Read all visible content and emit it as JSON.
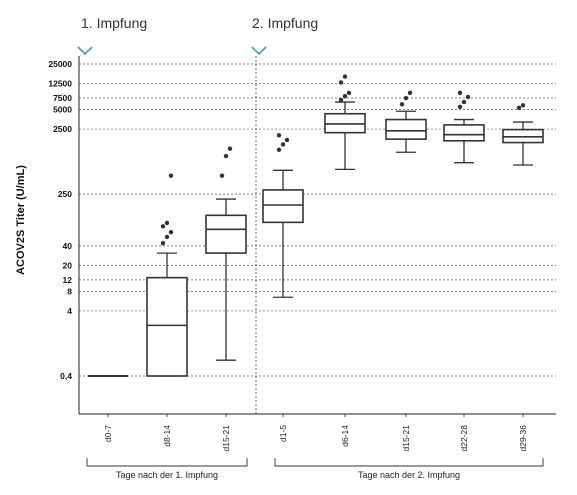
{
  "chart_data": {
    "type": "box",
    "section_labels": [
      "1. Impfung",
      "2. Impfung"
    ],
    "ylabel": "ACOV2S Titer (U/mL)",
    "y_scale": "log",
    "y_ticks": [
      "25000",
      "12500",
      "7500",
      "5000",
      "2500",
      "250",
      "40",
      "20",
      "12",
      "8",
      "4",
      "0,4"
    ],
    "y_tick_values": [
      25000,
      12500,
      7500,
      5000,
      2500,
      250,
      40,
      20,
      12,
      8,
      4,
      0.4
    ],
    "grid": "horizontal dashed",
    "groups": [
      {
        "label": "Tage nach der 1. Impfung",
        "categories": [
          "d0-7",
          "d8-14",
          "d15-21"
        ]
      },
      {
        "label": "Tage nach der 2. Impfung",
        "categories": [
          "d1-5",
          "d6-14",
          "d15-21",
          "d22-28",
          "d29-36"
        ]
      }
    ],
    "series": [
      {
        "category": "d0-7",
        "whisker_low": 0.4,
        "q1": 0.4,
        "median": 0.4,
        "q3": 0.4,
        "whisker_high": 0.4,
        "outliers": []
      },
      {
        "category": "d8-14",
        "whisker_low": 0.4,
        "q1": 0.4,
        "median": 2.4,
        "q3": 13,
        "whisker_high": 31,
        "outliers": [
          44,
          55,
          65,
          80,
          90,
          480
        ]
      },
      {
        "category": "d15-21",
        "whisker_low": 0.7,
        "q1": 31,
        "median": 72,
        "q3": 118,
        "whisker_high": 210,
        "outliers": [
          480,
          960,
          1250
        ]
      },
      {
        "category": "d1-5",
        "whisker_low": 6.5,
        "q1": 92,
        "median": 170,
        "q3": 290,
        "whisker_high": 580,
        "outliers": [
          1200,
          1450,
          1700,
          2000
        ]
      },
      {
        "category": "d6-14",
        "whisker_low": 600,
        "q1": 2200,
        "median": 3000,
        "q3": 4300,
        "whisker_high": 6500,
        "outliers": [
          7000,
          8000,
          9000,
          13000,
          16000
        ]
      },
      {
        "category": "d15-21",
        "whisker_low": 1100,
        "q1": 1750,
        "median": 2350,
        "q3": 3500,
        "whisker_high": 4700,
        "outliers": [
          6000,
          7500,
          9000
        ]
      },
      {
        "category": "d22-28",
        "whisker_low": 760,
        "q1": 1650,
        "median": 2050,
        "q3": 2900,
        "whisker_high": 3500,
        "outliers": [
          5500,
          6500,
          7800,
          9000
        ]
      },
      {
        "category": "d29-36",
        "whisker_low": 700,
        "q1": 1550,
        "median": 1900,
        "q3": 2450,
        "whisker_high": 3200,
        "outliers": [
          5300,
          5800
        ]
      }
    ],
    "colors": {
      "box": "#333333",
      "marker": "#3aa6a6",
      "grid": "#555555"
    }
  }
}
